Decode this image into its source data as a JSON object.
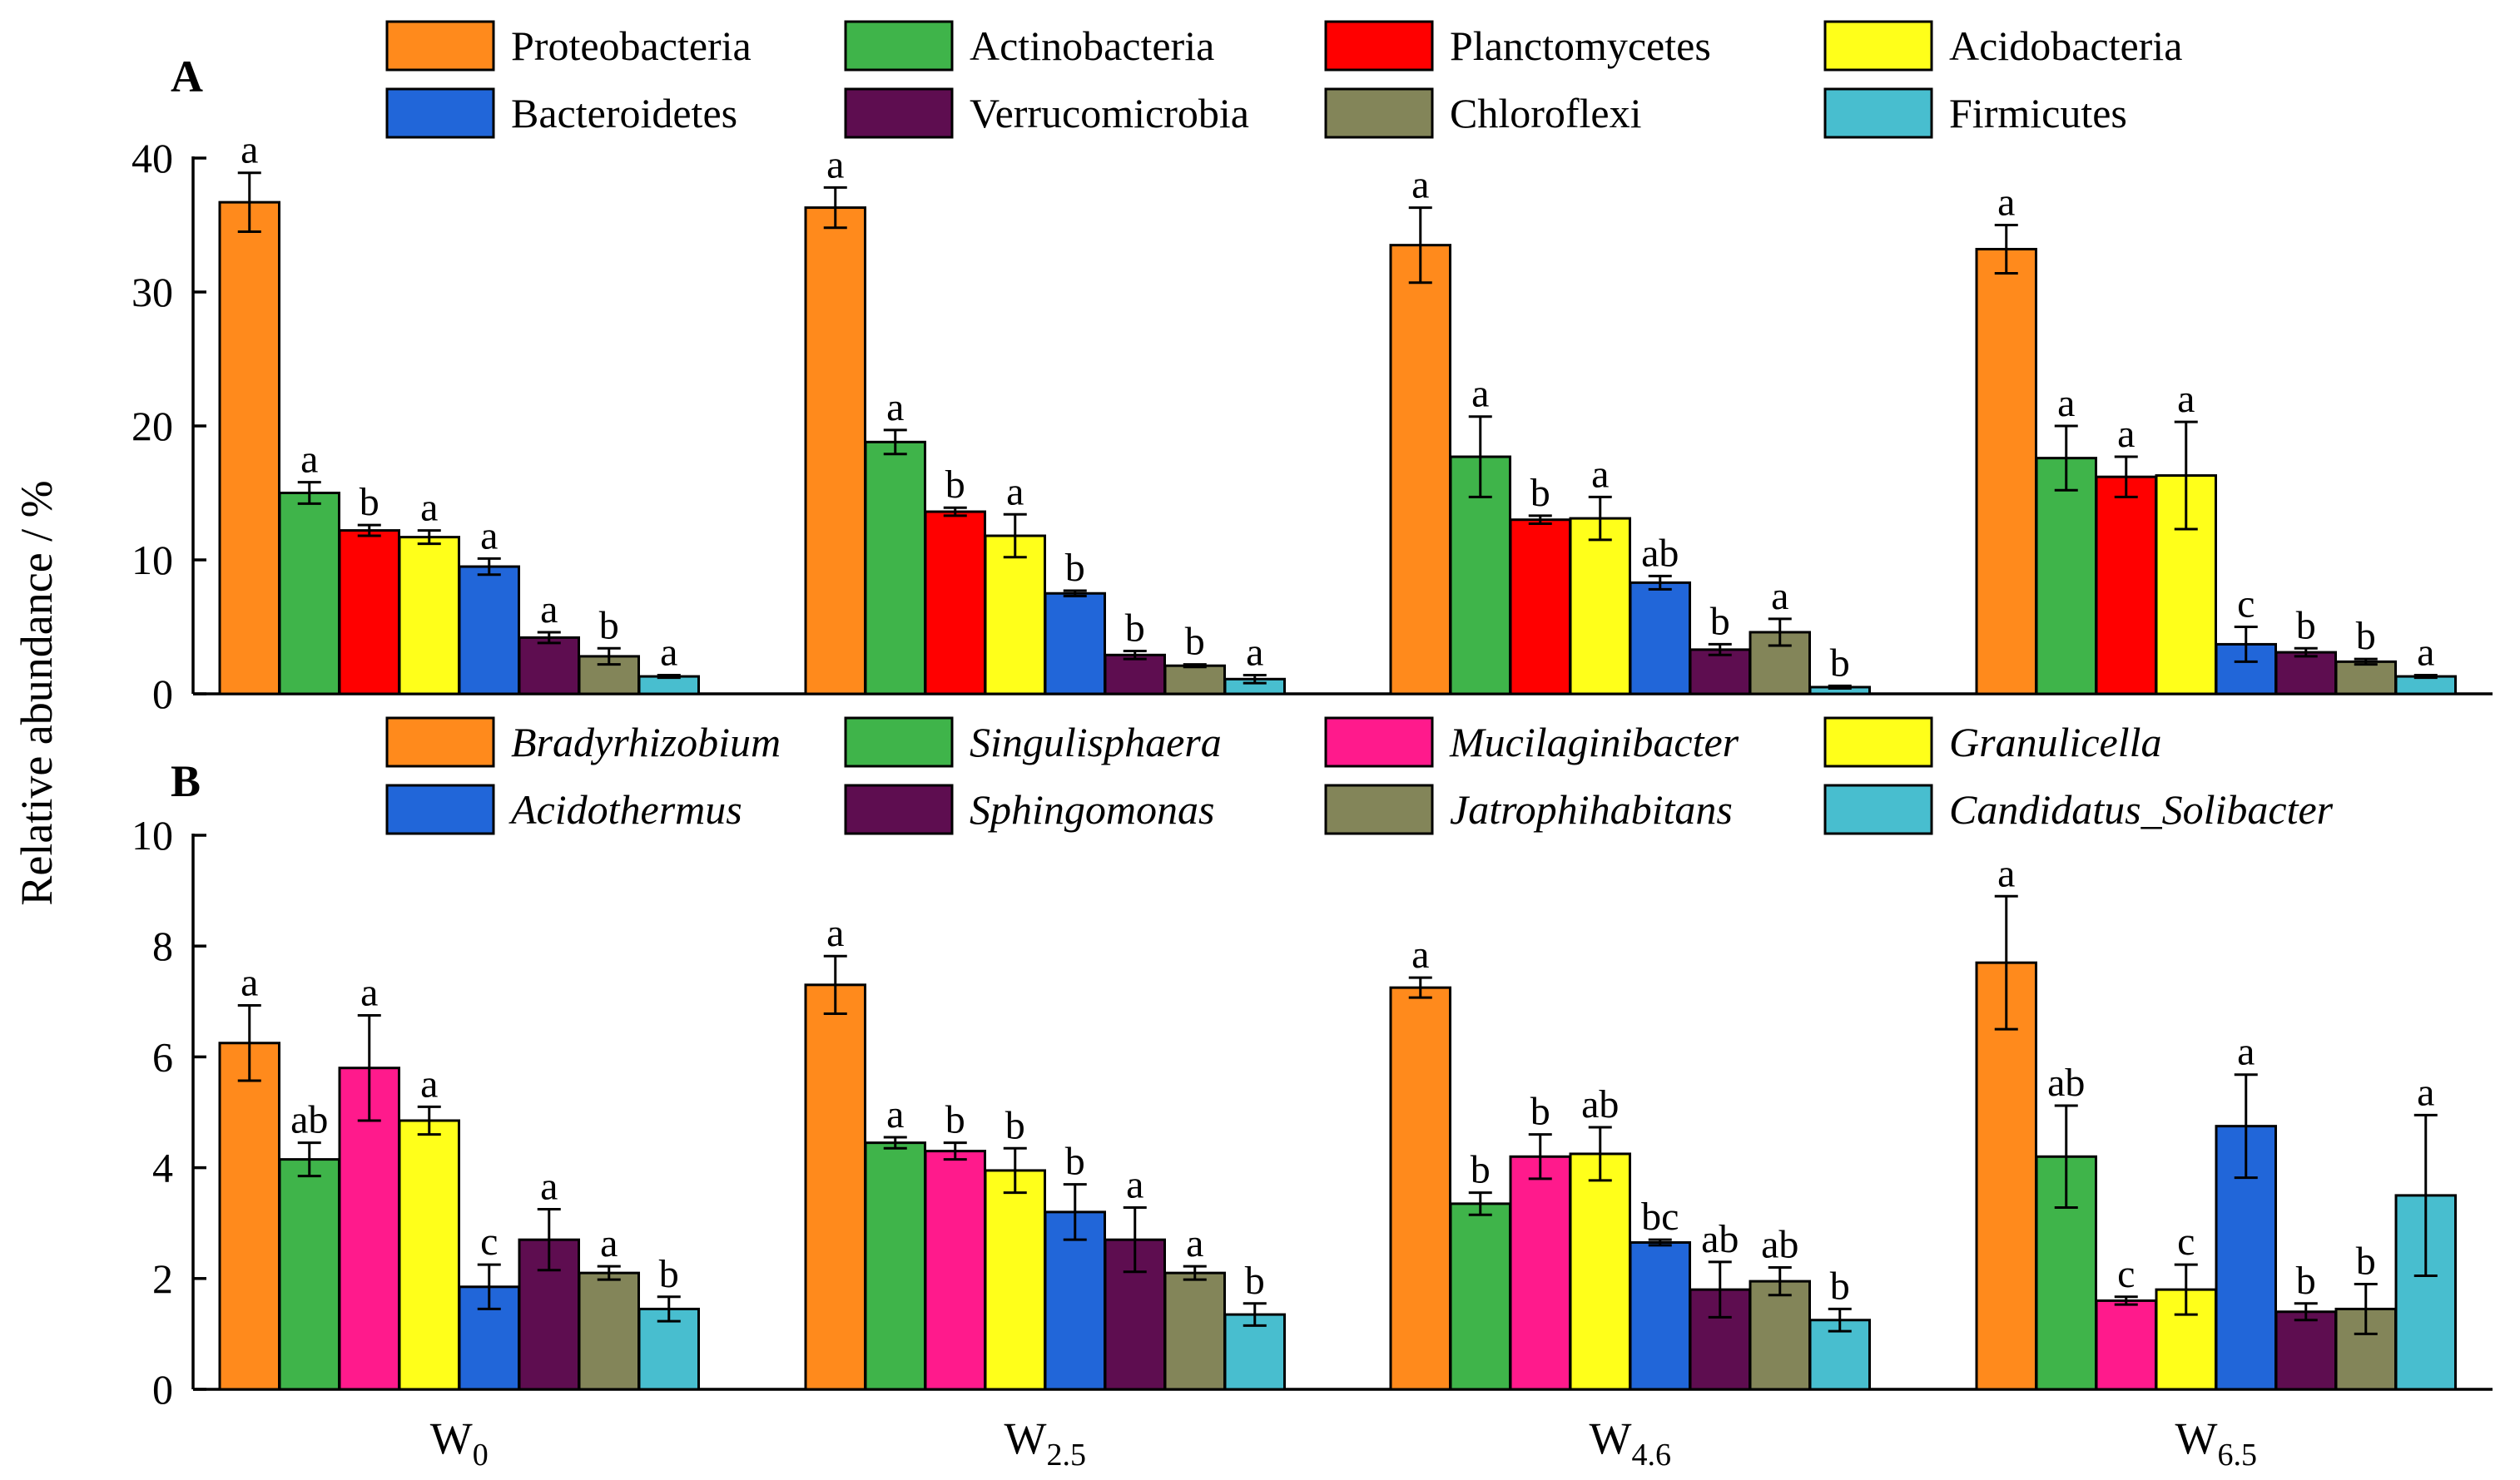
{
  "chart_data": [
    {
      "type": "bar",
      "panel_label": "A",
      "title": "",
      "xlabel": "",
      "ylabel": "Relative abundance / %",
      "ylim": [
        0,
        40
      ],
      "yticks": [
        0,
        10,
        20,
        30,
        40
      ],
      "legend_italic": false,
      "categories": [
        {
          "base": "W",
          "sub": "0"
        },
        {
          "base": "W",
          "sub": "2.5"
        },
        {
          "base": "W",
          "sub": "4.6"
        },
        {
          "base": "W",
          "sub": "6.5"
        }
      ],
      "series": [
        {
          "name": "Proteobacteria",
          "color": "#FF8A1C",
          "values": [
            36.7,
            36.3,
            33.5,
            33.2
          ],
          "errors": [
            2.2,
            1.5,
            2.8,
            1.8
          ],
          "labels": [
            "a",
            "a",
            "a",
            "a"
          ]
        },
        {
          "name": "Actinobacteria",
          "color": "#3FB44A",
          "values": [
            15.0,
            18.8,
            17.7,
            17.6
          ],
          "errors": [
            0.8,
            0.9,
            3.0,
            2.4
          ],
          "labels": [
            "a",
            "a",
            "a",
            "a"
          ]
        },
        {
          "name": "Planctomycetes",
          "color": "#FF0000",
          "values": [
            12.2,
            13.6,
            13.0,
            16.2
          ],
          "errors": [
            0.4,
            0.3,
            0.3,
            1.5
          ],
          "labels": [
            "b",
            "b",
            "b",
            "a"
          ]
        },
        {
          "name": "Acidobacteria",
          "color": "#FFFF1A",
          "values": [
            11.7,
            11.8,
            13.1,
            16.3
          ],
          "errors": [
            0.5,
            1.6,
            1.6,
            4.0
          ],
          "labels": [
            "a",
            "a",
            "a",
            "a"
          ]
        },
        {
          "name": "Bacteroidetes",
          "color": "#2166D9",
          "values": [
            9.5,
            7.5,
            8.3,
            3.7
          ],
          "errors": [
            0.6,
            0.2,
            0.5,
            1.3
          ],
          "labels": [
            "a",
            "b",
            "ab",
            "c"
          ]
        },
        {
          "name": "Verrucomicrobia",
          "color": "#5E0D50",
          "values": [
            4.2,
            2.9,
            3.3,
            3.1
          ],
          "errors": [
            0.4,
            0.3,
            0.4,
            0.3
          ],
          "labels": [
            "a",
            "b",
            "b",
            "b"
          ]
        },
        {
          "name": "Chloroflexi",
          "color": "#838559",
          "values": [
            2.8,
            2.1,
            4.6,
            2.4
          ],
          "errors": [
            0.6,
            0.1,
            1.0,
            0.2
          ],
          "labels": [
            "b",
            "b",
            "a",
            "b"
          ]
        },
        {
          "name": "Firmicutes",
          "color": "#48BECF",
          "values": [
            1.3,
            1.1,
            0.5,
            1.3
          ],
          "errors": [
            0.1,
            0.3,
            0.1,
            0.1
          ],
          "labels": [
            "a",
            "a",
            "b",
            "a"
          ]
        }
      ]
    },
    {
      "type": "bar",
      "panel_label": "B",
      "title": "",
      "xlabel": "",
      "ylabel": "Relative abundance / %",
      "ylim": [
        0,
        10
      ],
      "yticks": [
        0,
        2,
        4,
        6,
        8,
        10
      ],
      "legend_italic": true,
      "categories": [
        {
          "base": "W",
          "sub": "0"
        },
        {
          "base": "W",
          "sub": "2.5"
        },
        {
          "base": "W",
          "sub": "4.6"
        },
        {
          "base": "W",
          "sub": "6.5"
        }
      ],
      "series": [
        {
          "name": "Bradyrhizobium",
          "color": "#FF8A1C",
          "values": [
            6.25,
            7.3,
            7.25,
            7.7
          ],
          "errors": [
            0.68,
            0.52,
            0.18,
            1.2
          ],
          "labels": [
            "a",
            "a",
            "a",
            "a"
          ]
        },
        {
          "name": "Singulisphaera",
          "color": "#3FB44A",
          "values": [
            4.15,
            4.45,
            3.35,
            4.2
          ],
          "errors": [
            0.3,
            0.1,
            0.2,
            0.92
          ],
          "labels": [
            "ab",
            "a",
            "b",
            "ab"
          ]
        },
        {
          "name": "Mucilaginibacter",
          "color": "#FF1A8C",
          "values": [
            5.8,
            4.3,
            4.2,
            1.6
          ],
          "errors": [
            0.95,
            0.15,
            0.4,
            0.07
          ],
          "labels": [
            "a",
            "b",
            "b",
            "c"
          ]
        },
        {
          "name": "Granulicella",
          "color": "#FFFF1A",
          "values": [
            4.85,
            3.95,
            4.25,
            1.8
          ],
          "errors": [
            0.25,
            0.4,
            0.48,
            0.45
          ],
          "labels": [
            "a",
            "b",
            "ab",
            "c"
          ]
        },
        {
          "name": "Acidothermus",
          "color": "#2166D9",
          "values": [
            1.85,
            3.2,
            2.65,
            4.75
          ],
          "errors": [
            0.4,
            0.5,
            0.05,
            0.93
          ],
          "labels": [
            "c",
            "b",
            "bc",
            "a"
          ]
        },
        {
          "name": "Sphingomonas",
          "color": "#5E0D50",
          "values": [
            2.7,
            2.7,
            1.8,
            1.4
          ],
          "errors": [
            0.55,
            0.58,
            0.5,
            0.15
          ],
          "labels": [
            "a",
            "a",
            "ab",
            "b"
          ]
        },
        {
          "name": "Jatrophihabitans",
          "color": "#838559",
          "values": [
            2.1,
            2.1,
            1.95,
            1.45
          ],
          "errors": [
            0.12,
            0.12,
            0.25,
            0.45
          ],
          "labels": [
            "a",
            "a",
            "ab",
            "b"
          ]
        },
        {
          "name": "Candidatus_Solibacter",
          "color": "#48BECF",
          "values": [
            1.45,
            1.35,
            1.25,
            3.5
          ],
          "errors": [
            0.22,
            0.2,
            0.2,
            1.45
          ],
          "labels": [
            "b",
            "b",
            "b",
            "a"
          ]
        }
      ]
    }
  ]
}
